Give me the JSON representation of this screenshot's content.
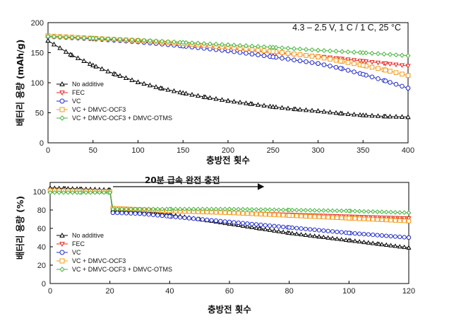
{
  "chart_data": [
    {
      "type": "line",
      "title": "",
      "condition_label": "4.3 – 2.5 V, 1 C / 1 C, 25 °C",
      "xlabel": "충방전 횟수",
      "ylabel": "배터리 용량 (mAh/g)",
      "xlim": [
        0,
        400
      ],
      "ylim": [
        0,
        200
      ],
      "xticks": [
        "0",
        "50",
        "100",
        "150",
        "200",
        "250",
        "300",
        "350",
        "400"
      ],
      "yticks": [
        "0",
        "50",
        "100",
        "150",
        "200"
      ],
      "legend_position": "lower-left",
      "series": [
        {
          "name": "No additive",
          "color": "#000000",
          "marker": "triangle",
          "x": [
            0,
            25,
            50,
            75,
            100,
            125,
            150,
            175,
            200,
            225,
            250,
            275,
            300,
            325,
            350,
            375,
            400
          ],
          "y": [
            170,
            147,
            129,
            114,
            101,
            91,
            83,
            76,
            70,
            65,
            60,
            56,
            53,
            49,
            46,
            44,
            43
          ]
        },
        {
          "name": "FEC",
          "color": "#e8251f",
          "marker": "triangle-down",
          "x": [
            0,
            50,
            100,
            150,
            200,
            250,
            300,
            325,
            350,
            375,
            400
          ],
          "y": [
            177,
            173,
            169,
            163,
            157,
            150,
            144,
            140,
            136,
            132,
            128
          ]
        },
        {
          "name": "VC",
          "color": "#1f2bd1",
          "marker": "circle",
          "x": [
            0,
            50,
            100,
            150,
            200,
            250,
            300,
            325,
            350,
            375,
            400
          ],
          "y": [
            177,
            173,
            168,
            161,
            153,
            143,
            132,
            124,
            114,
            103,
            91
          ]
        },
        {
          "name": "VC + DMVC-OCF3",
          "color": "#f59a1b",
          "marker": "square",
          "x": [
            0,
            50,
            100,
            150,
            200,
            250,
            300,
            325,
            350,
            375,
            400
          ],
          "y": [
            178,
            174,
            170,
            165,
            159,
            152,
            143,
            136,
            129,
            121,
            112
          ]
        },
        {
          "name": "VC + DMVC-OCF3 + DMVC-OTMS",
          "color": "#43b53a",
          "marker": "diamond",
          "x": [
            0,
            50,
            100,
            150,
            200,
            250,
            300,
            350,
            400
          ],
          "y": [
            177,
            174,
            171,
            167,
            163,
            159,
            154,
            150,
            145
          ]
        }
      ]
    },
    {
      "type": "line",
      "title": "",
      "annotation": "20분 급속 완전 충전",
      "xlabel": "충방전 횟수",
      "ylabel": "배터리 용량 (%)",
      "xlim": [
        0,
        120
      ],
      "ylim": [
        0,
        110
      ],
      "xticks": [
        "0",
        "20",
        "40",
        "60",
        "80",
        "100",
        "120"
      ],
      "yticks": [
        "0",
        "20",
        "40",
        "60",
        "80",
        "100"
      ],
      "legend_position": "lower-left",
      "series": [
        {
          "name": "No additive",
          "color": "#000000",
          "marker": "triangle",
          "x": [
            0,
            5,
            10,
            15,
            20,
            21,
            30,
            40,
            50,
            60,
            70,
            80,
            90,
            100,
            110,
            120
          ],
          "y": [
            104,
            103.5,
            103,
            102.5,
            102,
            80,
            79,
            75,
            70,
            65,
            60,
            55,
            51,
            47,
            43,
            39
          ]
        },
        {
          "name": "FEC",
          "color": "#e8251f",
          "marker": "triangle-down",
          "x": [
            0,
            10,
            20,
            21,
            40,
            60,
            80,
            100,
            120
          ],
          "y": [
            101,
            100.5,
            100,
            81,
            79,
            77,
            75,
            73,
            71
          ]
        },
        {
          "name": "VC",
          "color": "#1f2bd1",
          "marker": "circle",
          "x": [
            0,
            10,
            20,
            21,
            30,
            40,
            60,
            80,
            100,
            120
          ],
          "y": [
            100,
            100,
            100,
            77,
            76,
            73,
            67,
            61,
            55,
            50
          ]
        },
        {
          "name": "VC + DMVC-OCF3",
          "color": "#f59a1b",
          "marker": "square",
          "x": [
            0,
            10,
            20,
            21,
            40,
            60,
            80,
            100,
            120
          ],
          "y": [
            101,
            100.5,
            100,
            82,
            79,
            77,
            74,
            71,
            68
          ]
        },
        {
          "name": "VC + DMVC-OCF3 + DMVC-OTMS",
          "color": "#43b53a",
          "marker": "diamond",
          "x": [
            0,
            10,
            20,
            21,
            40,
            60,
            80,
            100,
            120
          ],
          "y": [
            99,
            99,
            99,
            81,
            81,
            81,
            80,
            79,
            77
          ]
        }
      ]
    }
  ]
}
